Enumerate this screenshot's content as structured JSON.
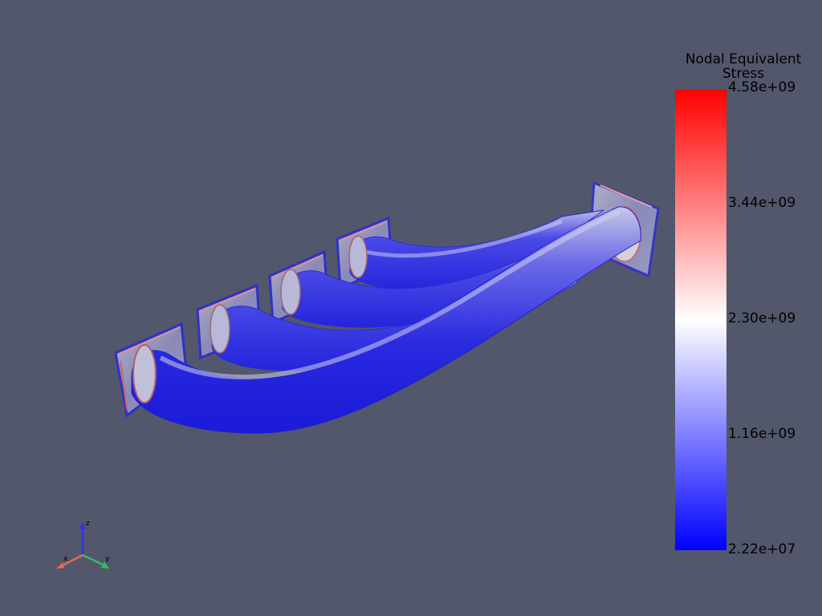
{
  "viewer": {
    "background": "#52576b"
  },
  "colorbar": {
    "title_line1": "Nodal Equivalent",
    "title_line2": "Stress",
    "colormap": [
      "#0000ff",
      "#ffffff",
      "#ff0000"
    ],
    "ticks": [
      "4.58e+09",
      "3.44e+09",
      "2.30e+09",
      "1.16e+09",
      "2.22e+07"
    ]
  },
  "axes": {
    "z_label": "z",
    "x_label": "x",
    "y_label": "y",
    "z_color": "#3333dd",
    "x_color": "#e0704a",
    "y_color": "#33bb66"
  },
  "chart_data": {
    "type": "heatmap",
    "title": "Nodal Equivalent Stress",
    "vmin": 22200000,
    "vmax": 4580000000,
    "tick_values": [
      4580000000,
      3440000000,
      2300000000,
      1160000000,
      22200000
    ],
    "tick_labels": [
      "4.58e+09",
      "3.44e+09",
      "2.30e+09",
      "1.16e+09",
      "2.22e+07"
    ],
    "colormap": "blue-white-red"
  }
}
